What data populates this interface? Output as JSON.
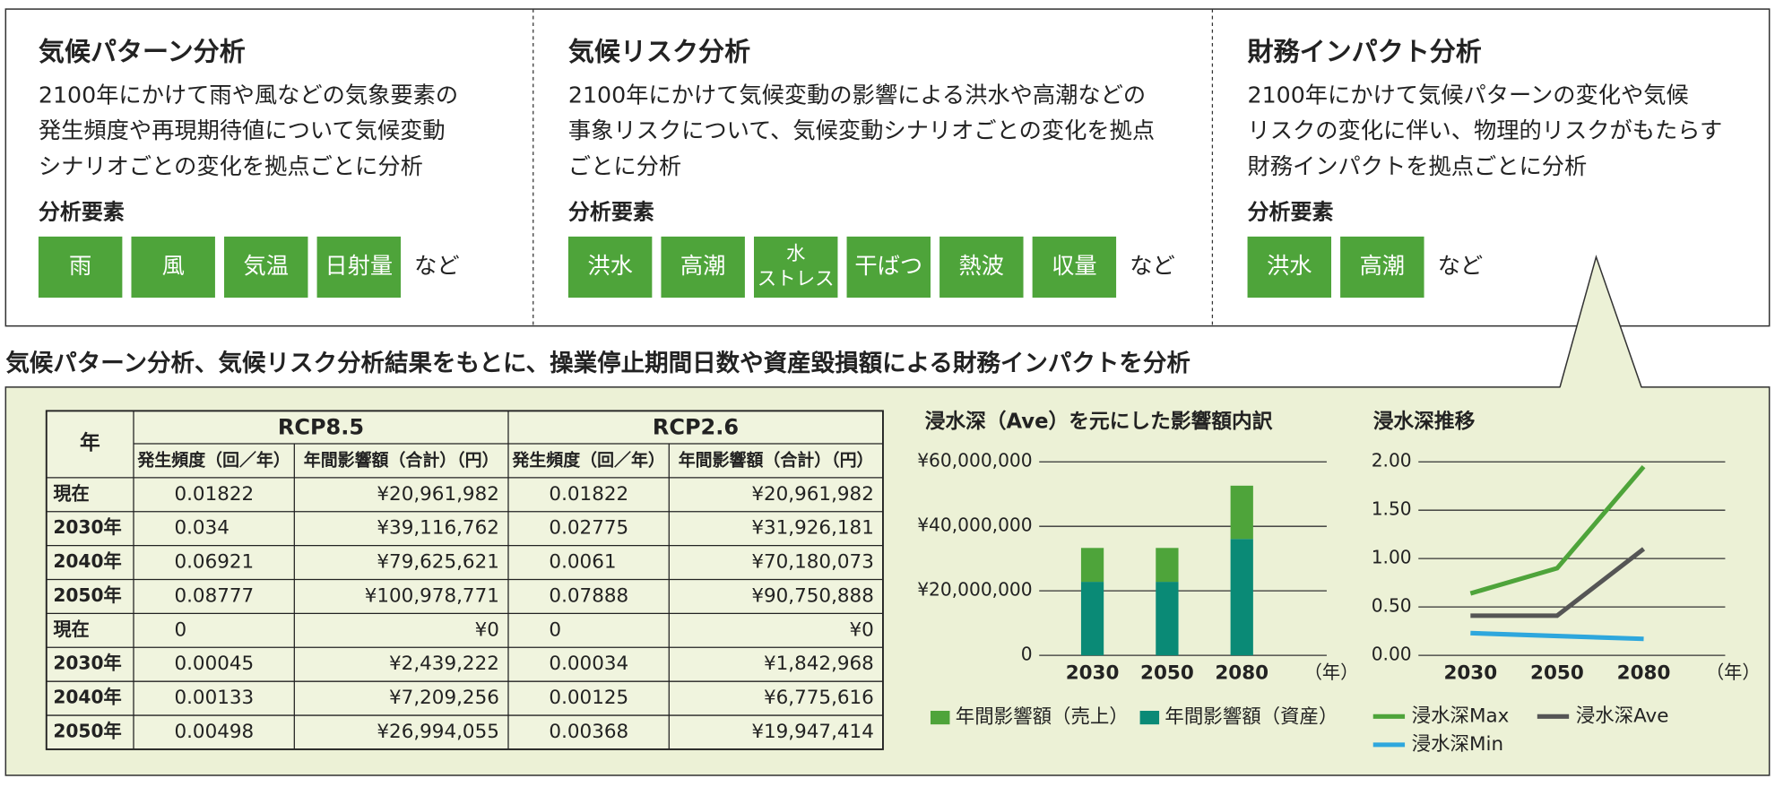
{
  "panels": [
    {
      "title": "気候パターン分析",
      "lines": [
        "2100年にかけて雨や風などの気象要素の",
        "発生頻度や再現期待値について気候変動",
        "シナリオごとの変化を拠点ごとに分析"
      ],
      "elements_label": "分析要素",
      "tags": [
        [
          "雨"
        ],
        [
          "風"
        ],
        [
          "気温"
        ],
        [
          "日射量"
        ]
      ],
      "suffix": "など"
    },
    {
      "title": "気候リスク分析",
      "lines": [
        "2100年にかけて気候変動の影響による洪水や高潮などの",
        "事象リスクについて、気候変動シナリオごとの変化を拠点",
        "ごとに分析"
      ],
      "elements_label": "分析要素",
      "tags": [
        [
          "洪水"
        ],
        [
          "高潮"
        ],
        [
          "水",
          "ストレス"
        ],
        [
          "干ばつ"
        ],
        [
          "熱波"
        ],
        [
          "収量"
        ]
      ],
      "suffix": "など"
    },
    {
      "title": "財務インパクト分析",
      "lines": [
        "2100年にかけて気候パターンの変化や気候",
        "リスクの変化に伴い、物理的リスクがもたらす",
        "財務インパクトを拠点ごとに分析"
      ],
      "elements_label": "分析要素",
      "tags": [
        [
          "洪水"
        ],
        [
          "高潮"
        ]
      ],
      "suffix": "など"
    }
  ],
  "headline": "気候パターン分析、気候リスク分析結果をもとに、操業停止期間日数や資産毀損額による財務インパクトを分析",
  "table": {
    "header": [
      "年",
      "RCP8.5",
      "RCP2.6"
    ],
    "subheader": [
      "発生頻度（回／年）",
      "年間影響額（合計）（円）",
      "発生頻度（回／年）",
      "年間影響額（合計）（円）"
    ],
    "rows": [
      [
        "現在",
        "0.01822",
        "¥20,961,982",
        "0.01822",
        "¥20,961,982"
      ],
      [
        "2030年",
        "0.034",
        "¥39,116,762",
        "0.02775",
        "¥31,926,181"
      ],
      [
        "2040年",
        "0.06921",
        "¥79,625,621",
        "0.0061",
        "¥70,180,073"
      ],
      [
        "2050年",
        "0.08777",
        "¥100,978,771",
        "0.07888",
        "¥90,750,888"
      ],
      [
        "現在",
        "0",
        "¥0",
        "0",
        "¥0"
      ],
      [
        "2030年",
        "0.00045",
        "¥2,439,222",
        "0.00034",
        "¥1,842,968"
      ],
      [
        "2040年",
        "0.00133",
        "¥7,209,256",
        "0.00125",
        "¥6,775,616"
      ],
      [
        "2050年",
        "0.00498",
        "¥26,994,055",
        "0.00368",
        "¥19,947,414"
      ]
    ]
  },
  "chart_data": [
    {
      "type": "bar",
      "stacked": true,
      "title": "浸水深（Ave）を元にした影響額内訳",
      "categories": [
        "2030",
        "2050",
        "2080"
      ],
      "x_unit": "（年）",
      "series": [
        {
          "name": "年間影響額（売上）",
          "color": "#4ea43a",
          "values": [
            10500000,
            10500000,
            16500000
          ]
        },
        {
          "name": "年間影響額（資産）",
          "color": "#0a8a76",
          "values": [
            22800000,
            22800000,
            36100000
          ]
        }
      ],
      "ylim": [
        0,
        60000000
      ],
      "yticks": [
        0,
        {
          "value": 20000000,
          "label": "¥20,000,000"
        },
        {
          "value": 40000000,
          "label": "¥40,000,000"
        },
        {
          "value": 60000000,
          "label": "¥60,000,000"
        }
      ],
      "grid": true
    },
    {
      "type": "line",
      "title": "浸水深推移",
      "categories": [
        "2030",
        "2050",
        "2080"
      ],
      "x_unit": "（年）",
      "series": [
        {
          "name": "浸水深Max",
          "color": "#4ea43a",
          "values": [
            0.64,
            0.9,
            1.95
          ]
        },
        {
          "name": "浸水深Ave",
          "color": "#555555",
          "values": [
            0.41,
            0.41,
            1.1
          ]
        },
        {
          "name": "浸水深Min",
          "color": "#2ea7dd",
          "values": [
            0.23,
            0.2,
            0.17
          ]
        }
      ],
      "ylim": [
        0,
        2
      ],
      "yticks": [
        {
          "value": 0,
          "label": "0.00"
        },
        {
          "value": 0.5,
          "label": "0.50"
        },
        {
          "value": 1,
          "label": "1.00"
        },
        {
          "value": 1.5,
          "label": "1.50"
        },
        {
          "value": 2,
          "label": "2.00"
        }
      ],
      "grid": true
    }
  ]
}
